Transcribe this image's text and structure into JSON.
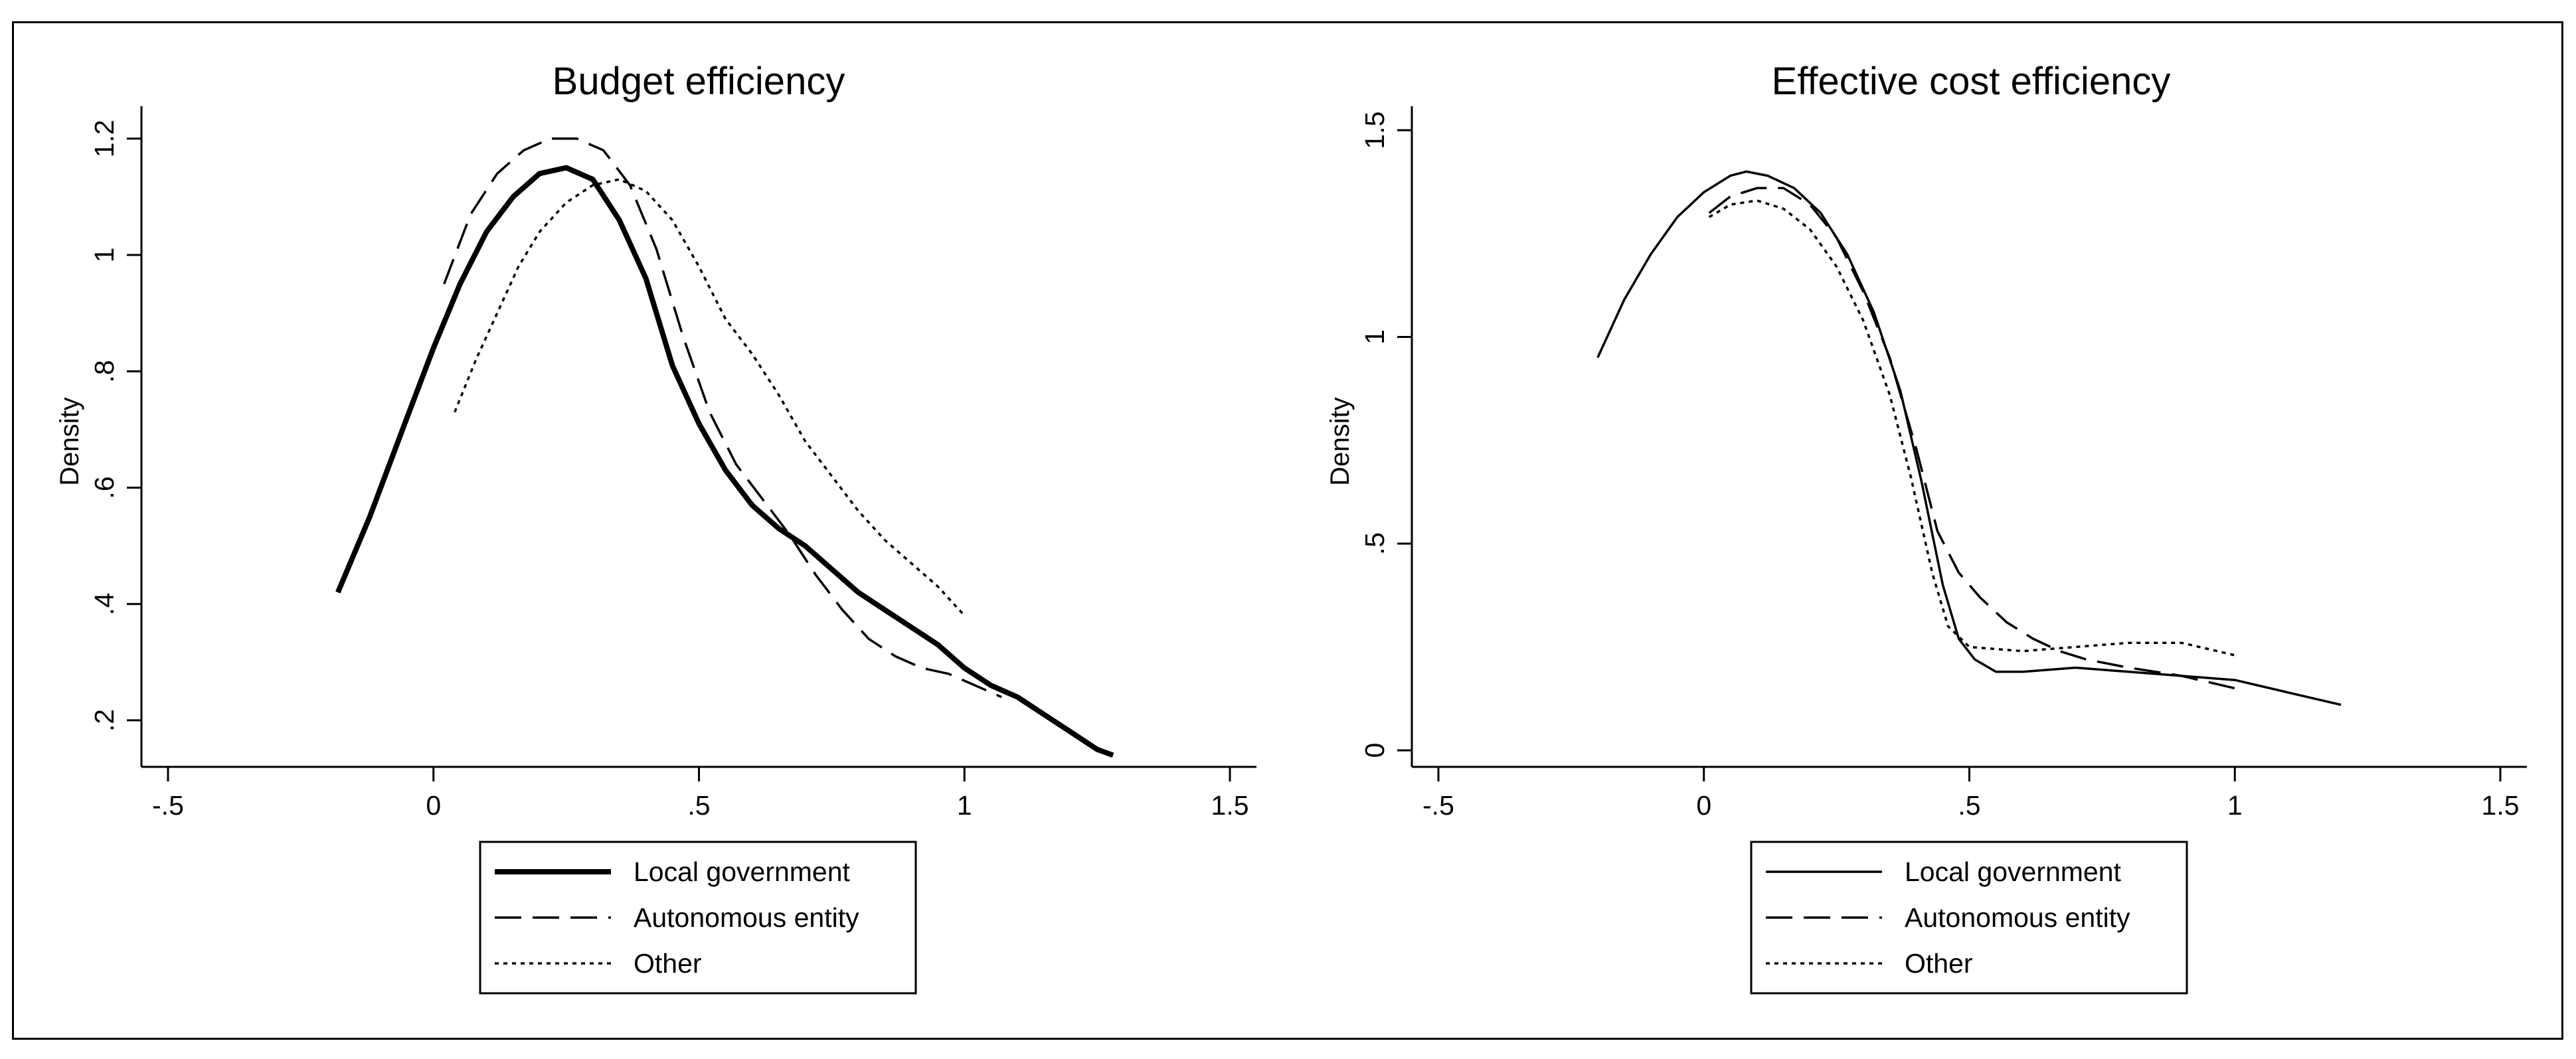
{
  "charts": [
    {
      "id": "budget",
      "type": "line",
      "title": "Budget efficiency",
      "xlabel": "",
      "ylabel": "Density",
      "xlim": [
        -0.55,
        1.55
      ],
      "ylim": [
        0.12,
        1.25
      ],
      "xticks": [
        -0.5,
        0,
        0.5,
        1,
        1.5
      ],
      "xtick_labels": [
        "-.5",
        "0",
        ".5",
        "1",
        "1.5"
      ],
      "yticks": [
        0.2,
        0.4,
        0.6,
        0.8,
        1,
        1.2
      ],
      "ytick_labels": [
        ".2",
        ".4",
        ".6",
        ".8",
        "1",
        "1.2"
      ],
      "legend": [
        "Local government",
        "Autonomous entity",
        "Other"
      ],
      "series": [
        {
          "name": "Local government",
          "style": "solid-thick",
          "points": [
            [
              -0.18,
              0.42
            ],
            [
              -0.12,
              0.55
            ],
            [
              -0.05,
              0.72
            ],
            [
              0,
              0.84
            ],
            [
              0.05,
              0.95
            ],
            [
              0.1,
              1.04
            ],
            [
              0.15,
              1.1
            ],
            [
              0.2,
              1.14
            ],
            [
              0.25,
              1.15
            ],
            [
              0.3,
              1.13
            ],
            [
              0.35,
              1.06
            ],
            [
              0.4,
              0.96
            ],
            [
              0.45,
              0.81
            ],
            [
              0.5,
              0.71
            ],
            [
              0.55,
              0.63
            ],
            [
              0.6,
              0.57
            ],
            [
              0.65,
              0.53
            ],
            [
              0.7,
              0.5
            ],
            [
              0.75,
              0.46
            ],
            [
              0.8,
              0.42
            ],
            [
              0.85,
              0.39
            ],
            [
              0.9,
              0.36
            ],
            [
              0.95,
              0.33
            ],
            [
              1,
              0.29
            ],
            [
              1.05,
              0.26
            ],
            [
              1.1,
              0.24
            ],
            [
              1.15,
              0.21
            ],
            [
              1.2,
              0.18
            ],
            [
              1.25,
              0.15
            ],
            [
              1.28,
              0.14
            ]
          ]
        },
        {
          "name": "Autonomous entity",
          "style": "dashed",
          "points": [
            [
              0.02,
              0.95
            ],
            [
              0.07,
              1.07
            ],
            [
              0.12,
              1.14
            ],
            [
              0.17,
              1.18
            ],
            [
              0.22,
              1.2
            ],
            [
              0.27,
              1.2
            ],
            [
              0.32,
              1.18
            ],
            [
              0.37,
              1.12
            ],
            [
              0.42,
              1.01
            ],
            [
              0.47,
              0.86
            ],
            [
              0.52,
              0.73
            ],
            [
              0.57,
              0.64
            ],
            [
              0.62,
              0.58
            ],
            [
              0.67,
              0.52
            ],
            [
              0.72,
              0.45
            ],
            [
              0.77,
              0.39
            ],
            [
              0.82,
              0.34
            ],
            [
              0.87,
              0.31
            ],
            [
              0.92,
              0.29
            ],
            [
              0.97,
              0.28
            ],
            [
              1.02,
              0.26
            ],
            [
              1.07,
              0.24
            ]
          ]
        },
        {
          "name": "Other",
          "style": "dotted",
          "points": [
            [
              0.04,
              0.73
            ],
            [
              0.08,
              0.82
            ],
            [
              0.12,
              0.9
            ],
            [
              0.16,
              0.98
            ],
            [
              0.2,
              1.04
            ],
            [
              0.25,
              1.09
            ],
            [
              0.3,
              1.12
            ],
            [
              0.35,
              1.13
            ],
            [
              0.4,
              1.11
            ],
            [
              0.45,
              1.06
            ],
            [
              0.5,
              0.98
            ],
            [
              0.55,
              0.89
            ],
            [
              0.6,
              0.83
            ],
            [
              0.65,
              0.76
            ],
            [
              0.7,
              0.68
            ],
            [
              0.75,
              0.62
            ],
            [
              0.8,
              0.56
            ],
            [
              0.85,
              0.51
            ],
            [
              0.9,
              0.47
            ],
            [
              0.95,
              0.43
            ],
            [
              1,
              0.38
            ]
          ]
        }
      ]
    },
    {
      "id": "cost",
      "type": "line",
      "title": "Effective cost efficiency",
      "xlabel": "",
      "ylabel": "Density",
      "xlim": [
        -0.55,
        1.55
      ],
      "ylim": [
        -0.04,
        1.55
      ],
      "xticks": [
        -0.5,
        0,
        0.5,
        1,
        1.5
      ],
      "xtick_labels": [
        "-.5",
        "0",
        ".5",
        "1",
        "1.5"
      ],
      "yticks": [
        0,
        0.5,
        1,
        1.5
      ],
      "ytick_labels": [
        "0",
        ".5",
        "1",
        "1.5"
      ],
      "legend": [
        "Local government",
        "Autonomous entity",
        "Other"
      ],
      "series": [
        {
          "name": "Local government",
          "style": "solid",
          "points": [
            [
              -0.2,
              0.95
            ],
            [
              -0.15,
              1.09
            ],
            [
              -0.1,
              1.2
            ],
            [
              -0.05,
              1.29
            ],
            [
              0,
              1.35
            ],
            [
              0.05,
              1.39
            ],
            [
              0.08,
              1.4
            ],
            [
              0.12,
              1.39
            ],
            [
              0.17,
              1.36
            ],
            [
              0.22,
              1.3
            ],
            [
              0.27,
              1.2
            ],
            [
              0.32,
              1.06
            ],
            [
              0.37,
              0.87
            ],
            [
              0.41,
              0.65
            ],
            [
              0.45,
              0.4
            ],
            [
              0.48,
              0.27
            ],
            [
              0.51,
              0.22
            ],
            [
              0.55,
              0.19
            ],
            [
              0.6,
              0.19
            ],
            [
              0.7,
              0.2
            ],
            [
              0.8,
              0.19
            ],
            [
              0.9,
              0.18
            ],
            [
              1,
              0.17
            ],
            [
              1.1,
              0.14
            ],
            [
              1.2,
              0.11
            ]
          ]
        },
        {
          "name": "Autonomous entity",
          "style": "dashed",
          "points": [
            [
              0.01,
              1.3
            ],
            [
              0.05,
              1.34
            ],
            [
              0.1,
              1.36
            ],
            [
              0.15,
              1.36
            ],
            [
              0.2,
              1.32
            ],
            [
              0.25,
              1.24
            ],
            [
              0.3,
              1.11
            ],
            [
              0.35,
              0.95
            ],
            [
              0.4,
              0.73
            ],
            [
              0.44,
              0.53
            ],
            [
              0.48,
              0.43
            ],
            [
              0.52,
              0.37
            ],
            [
              0.57,
              0.31
            ],
            [
              0.62,
              0.27
            ],
            [
              0.67,
              0.24
            ],
            [
              0.72,
              0.22
            ],
            [
              0.8,
              0.2
            ],
            [
              0.9,
              0.18
            ],
            [
              1,
              0.15
            ]
          ]
        },
        {
          "name": "Other",
          "style": "dotted",
          "points": [
            [
              0.01,
              1.29
            ],
            [
              0.05,
              1.32
            ],
            [
              0.1,
              1.33
            ],
            [
              0.15,
              1.31
            ],
            [
              0.2,
              1.26
            ],
            [
              0.25,
              1.17
            ],
            [
              0.3,
              1.04
            ],
            [
              0.35,
              0.86
            ],
            [
              0.39,
              0.66
            ],
            [
              0.43,
              0.43
            ],
            [
              0.46,
              0.3
            ],
            [
              0.5,
              0.25
            ],
            [
              0.6,
              0.24
            ],
            [
              0.7,
              0.25
            ],
            [
              0.8,
              0.26
            ],
            [
              0.9,
              0.26
            ],
            [
              1,
              0.23
            ]
          ]
        }
      ]
    }
  ]
}
